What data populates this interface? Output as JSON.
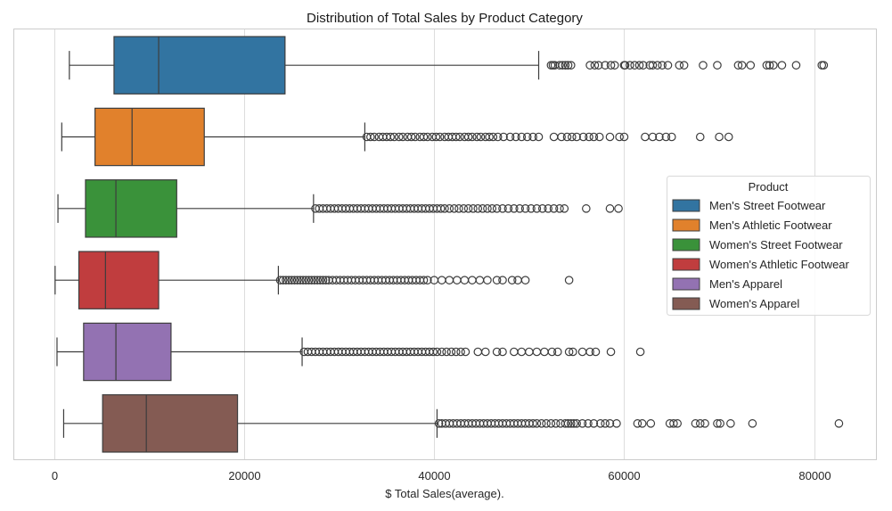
{
  "chart_data": {
    "type": "boxplot",
    "orientation": "horizontal",
    "title": "Distribution of Total Sales by Product Category",
    "xlabel": "$ Total Sales(average).",
    "ylabel": "",
    "xlim": [
      -4200,
      86500
    ],
    "xticks": [
      0,
      20000,
      40000,
      60000,
      80000
    ],
    "xtick_labels": [
      "0",
      "20000",
      "40000",
      "60000",
      "80000"
    ],
    "grid": "x",
    "legend": {
      "title": "Product",
      "placement": "right",
      "entries": [
        "Men's Street Footwear",
        "Men's Athletic Footwear",
        "Women's Street Footwear",
        "Women's Athletic Footwear",
        "Men's Apparel",
        "Women's Apparel"
      ]
    },
    "series": [
      {
        "name": "Men's Street Footwear",
        "color": "#3274a1",
        "whisker_low": 1600,
        "q1": 6300,
        "median": 11000,
        "q3": 24300,
        "whisker_high": 51000,
        "outliers": [
          52300,
          52500,
          52700,
          53200,
          53500,
          53800,
          54100,
          54400,
          56400,
          56900,
          57300,
          58000,
          58600,
          59000,
          60000,
          60100,
          60600,
          61100,
          61600,
          62000,
          62700,
          63000,
          63500,
          64000,
          64600,
          65800,
          66300,
          68300,
          69800,
          72000,
          72400,
          73300,
          75000,
          75300,
          75700,
          76600,
          78100,
          80800,
          81000
        ]
      },
      {
        "name": "Men's Athletic Footwear",
        "color": "#e1812c",
        "whisker_low": 800,
        "q1": 4300,
        "median": 8200,
        "q3": 15800,
        "whisker_high": 32700,
        "outliers": [
          32900,
          33300,
          33700,
          34200,
          34600,
          35000,
          35400,
          35800,
          36300,
          36700,
          37200,
          37600,
          38000,
          38500,
          38900,
          39300,
          39800,
          40200,
          40600,
          41100,
          41500,
          41900,
          42300,
          42700,
          43200,
          43600,
          44000,
          44500,
          44900,
          45400,
          45800,
          46200,
          46700,
          47300,
          48000,
          48600,
          49200,
          49800,
          50400,
          51000,
          52600,
          53400,
          54000,
          54500,
          55000,
          55700,
          56300,
          56800,
          57400,
          58500,
          59500,
          60000,
          62200,
          63000,
          63700,
          64400,
          65000,
          68000,
          70000,
          71000
        ]
      },
      {
        "name": "Women's Street Footwear",
        "color": "#3a923a",
        "whisker_low": 400,
        "q1": 3300,
        "median": 6500,
        "q3": 12900,
        "whisker_high": 27300,
        "outliers": [
          27500,
          27900,
          28300,
          28700,
          29100,
          29500,
          29900,
          30300,
          30700,
          31100,
          31500,
          31900,
          32300,
          32700,
          33100,
          33500,
          33900,
          34300,
          34700,
          35100,
          35500,
          35900,
          36300,
          36700,
          37100,
          37500,
          37900,
          38300,
          38700,
          39100,
          39500,
          39900,
          40300,
          40700,
          41100,
          41600,
          42100,
          42600,
          43100,
          43600,
          44100,
          44600,
          45100,
          45600,
          46100,
          46600,
          47200,
          47800,
          48400,
          49000,
          49600,
          50200,
          50800,
          51400,
          52000,
          52600,
          53200,
          53700,
          56000,
          58500,
          59400
        ]
      },
      {
        "name": "Women's Athletic Footwear",
        "color": "#c03d3e",
        "whisker_low": 100,
        "q1": 2600,
        "median": 5400,
        "q3": 11000,
        "whisker_high": 23600,
        "outliers": [
          23800,
          24100,
          24400,
          24700,
          25000,
          25300,
          25600,
          25900,
          26200,
          26500,
          26800,
          27100,
          27400,
          27700,
          28000,
          28300,
          28600,
          28900,
          29300,
          29700,
          30100,
          30500,
          30900,
          31300,
          31700,
          32100,
          32500,
          32900,
          33300,
          33700,
          34100,
          34500,
          34900,
          35300,
          35700,
          36100,
          36500,
          36900,
          37300,
          37700,
          38100,
          38500,
          38900,
          39300,
          40000,
          40800,
          41600,
          42400,
          43200,
          44000,
          44800,
          45600,
          46600,
          47200,
          48200,
          48800,
          49600,
          54200
        ]
      },
      {
        "name": "Men's Apparel",
        "color": "#9372b2",
        "whisker_low": 300,
        "q1": 3100,
        "median": 6500,
        "q3": 12300,
        "whisker_high": 26100,
        "outliers": [
          26300,
          26700,
          27100,
          27500,
          27900,
          28300,
          28700,
          29100,
          29500,
          29900,
          30300,
          30700,
          31100,
          31500,
          31900,
          32300,
          32700,
          33100,
          33500,
          33900,
          34300,
          34700,
          35100,
          35500,
          35900,
          36300,
          36700,
          37100,
          37500,
          37900,
          38300,
          38700,
          39100,
          39500,
          39900,
          40300,
          40800,
          41300,
          41800,
          42300,
          42800,
          43300,
          44600,
          45400,
          46600,
          47200,
          48400,
          49200,
          50000,
          50800,
          51600,
          52400,
          53000,
          54200,
          54600,
          55600,
          56400,
          57000,
          58600,
          61700
        ]
      },
      {
        "name": "Women's Apparel",
        "color": "#845b53",
        "whisker_low": 1000,
        "q1": 5100,
        "median": 9700,
        "q3": 19300,
        "whisker_high": 40300,
        "outliers": [
          40500,
          40800,
          41200,
          41600,
          42000,
          42400,
          42800,
          43200,
          43600,
          44000,
          44400,
          44800,
          45200,
          45600,
          46000,
          46400,
          46800,
          47200,
          47600,
          48000,
          48400,
          48800,
          49200,
          49600,
          50000,
          50400,
          50800,
          51300,
          51800,
          52300,
          52800,
          53300,
          53800,
          54100,
          54400,
          54700,
          55000,
          55600,
          56200,
          56800,
          57500,
          58000,
          58500,
          59200,
          61400,
          61900,
          62800,
          64800,
          65200,
          65600,
          67500,
          68000,
          68500,
          69800,
          70100,
          71200,
          73500,
          82600
        ]
      }
    ]
  }
}
